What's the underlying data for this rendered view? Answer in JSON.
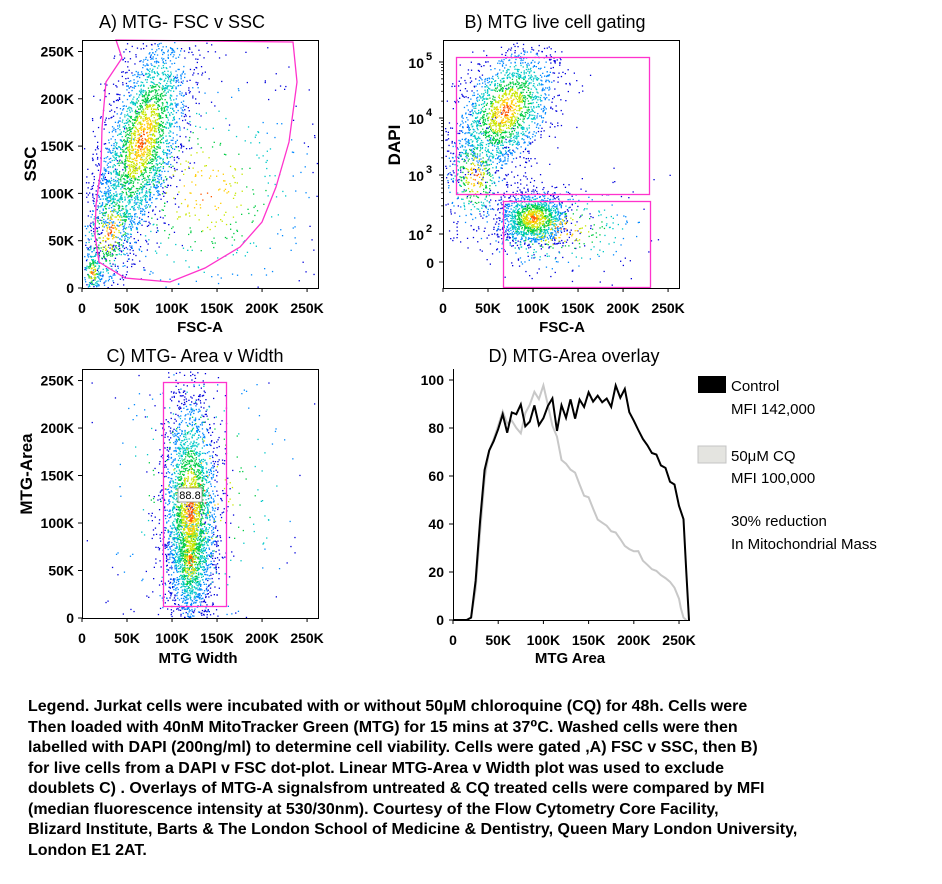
{
  "chart_data": [
    {
      "type": "scatter",
      "title": "A) MTG- FSC v SSC",
      "xlabel": "FSC-A",
      "ylabel": "SSC",
      "xlim": [
        0,
        262144
      ],
      "ylim": [
        0,
        262144
      ],
      "x_ticks": [
        "0",
        "50K",
        "100K",
        "150K",
        "200K",
        "250K"
      ],
      "y_ticks": [
        "0",
        "50K",
        "100K",
        "150K",
        "200K",
        "250K"
      ],
      "gate": "polygon",
      "gate_color": "#ff33cc"
    },
    {
      "type": "scatter",
      "title": "B) MTG live cell gating",
      "xlabel": "FSC-A",
      "ylabel": "DAPI",
      "xlim": [
        0,
        262144
      ],
      "yscale": "log",
      "x_ticks": [
        "0",
        "50K",
        "100K",
        "150K",
        "200K",
        "250K"
      ],
      "y_ticks": [
        {
          "base": "10",
          "exp": "5"
        },
        {
          "base": "10",
          "exp": "4"
        },
        {
          "base": "10",
          "exp": "3"
        },
        {
          "base": "10",
          "exp": "2"
        },
        {
          "base": "0",
          "exp": ""
        }
      ],
      "gates": [
        "DAPI positive",
        "DAPI negative"
      ],
      "gate_color": "#ff33cc"
    },
    {
      "type": "scatter",
      "title": "C) MTG- Area v Width",
      "xlabel": "MTG Width",
      "ylabel": "MTG-Area",
      "xlim": [
        0,
        262144
      ],
      "ylim": [
        0,
        262144
      ],
      "x_ticks": [
        "0",
        "50K",
        "100K",
        "150K",
        "200K",
        "250K"
      ],
      "y_ticks": [
        "0",
        "50K",
        "100K",
        "150K",
        "200K",
        "250K"
      ],
      "gate": "rectangle",
      "gate_label": "88.8",
      "gate_color": "#ff33cc"
    },
    {
      "type": "line",
      "title": "D) MTG-Area overlay",
      "xlabel": "MTG Area",
      "ylabel": "",
      "xlim": [
        0,
        262144
      ],
      "ylim": [
        0,
        100
      ],
      "x_ticks": [
        "0",
        "50K",
        "100K",
        "150K",
        "200K",
        "250K"
      ],
      "y_ticks": [
        "0",
        "20",
        "40",
        "60",
        "80",
        "100"
      ],
      "series": [
        {
          "name": "Control",
          "mfi": "MFI 142,000",
          "color": "#000000",
          "x": [
            0,
            15000,
            20000,
            25000,
            30000,
            35000,
            40000,
            45000,
            50000,
            55000,
            60000,
            65000,
            70000,
            75000,
            80000,
            85000,
            90000,
            95000,
            100000,
            105000,
            110000,
            115000,
            120000,
            125000,
            130000,
            135000,
            140000,
            145000,
            150000,
            155000,
            160000,
            165000,
            170000,
            175000,
            180000,
            185000,
            190000,
            195000,
            200000,
            205000,
            210000,
            215000,
            220000,
            225000,
            230000,
            235000,
            240000,
            245000,
            250000,
            255000,
            258000,
            261000
          ],
          "values": [
            0,
            0,
            1,
            15,
            40,
            62,
            72,
            75,
            81,
            85,
            78,
            87,
            85,
            89,
            82,
            84,
            90,
            82,
            85,
            88,
            92,
            80,
            88,
            85,
            93,
            85,
            92,
            88,
            95,
            90,
            92,
            90,
            93,
            90,
            98,
            92,
            95,
            86,
            82,
            78,
            75,
            72,
            70,
            68,
            65,
            62,
            58,
            55,
            48,
            42,
            20,
            0
          ]
        },
        {
          "name": "50μM CQ",
          "mfi": "MFI 100,000",
          "color": "#c8c8c8",
          "x": [
            0,
            15000,
            20000,
            25000,
            30000,
            35000,
            40000,
            45000,
            50000,
            55000,
            60000,
            65000,
            70000,
            75000,
            80000,
            85000,
            90000,
            95000,
            100000,
            105000,
            110000,
            115000,
            120000,
            125000,
            130000,
            135000,
            140000,
            145000,
            150000,
            155000,
            160000,
            165000,
            170000,
            175000,
            180000,
            185000,
            190000,
            195000,
            200000,
            205000,
            210000,
            215000,
            220000,
            225000,
            230000,
            235000,
            240000,
            245000,
            250000,
            252000,
            255000,
            258000
          ],
          "values": [
            0,
            0,
            1,
            14,
            38,
            60,
            70,
            76,
            82,
            86,
            82,
            84,
            80,
            78,
            85,
            90,
            96,
            92,
            97,
            90,
            80,
            75,
            68,
            65,
            62,
            60,
            55,
            52,
            50,
            46,
            42,
            40,
            38,
            38,
            36,
            34,
            32,
            30,
            30,
            28,
            26,
            24,
            22,
            20,
            18,
            16,
            15,
            14,
            10,
            5,
            1,
            0
          ]
        }
      ],
      "annotation": [
        "30% reduction",
        "In Mitochondrial Mass"
      ]
    }
  ],
  "legend_text": [
    "Legend. Jurkat cells were incubated with or without 50μM chloroquine (CQ) for 48h. Cells were",
    "Then loaded with 40nM MitoTracker Green (MTG) for 15 mins at 37⁰C. Washed cells were then",
    "labelled  with DAPI (200ng/ml) to determine cell viability. Cells were gated ,A) FSC v SSC, then B)",
    "for live cells from a DAPI v FSC dot-plot. Linear MTG-Area v Width plot  was used to exclude",
    "doublets C) . Overlays of MTG-A signalsfrom untreated & CQ treated cells were compared by MFI",
    "(median fluorescence intensity at 530/30nm). Courtesy of the Flow Cytometry Core Facility,",
    "Blizard Institute, Barts & The London School of Medicine & Dentistry, Queen Mary London University,",
    "London E1 2AT."
  ]
}
